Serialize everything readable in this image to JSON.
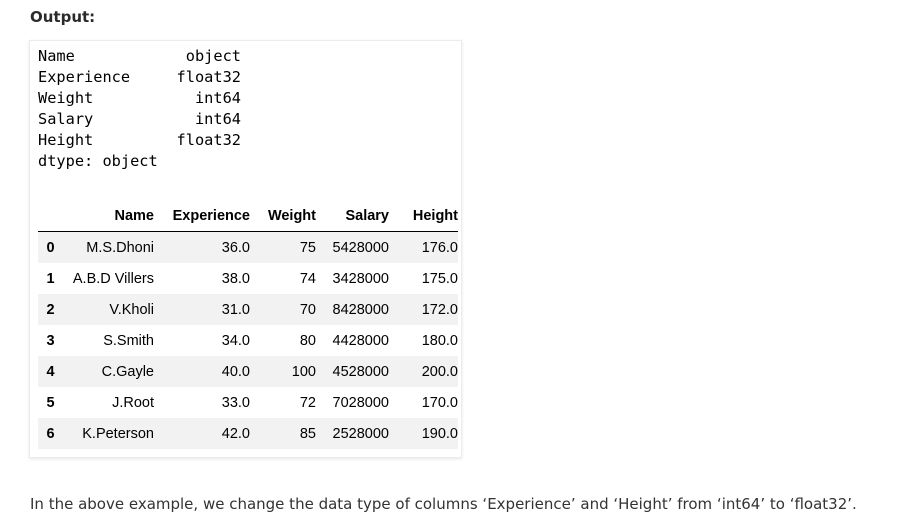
{
  "output_label": "Output:",
  "dtypes": [
    {
      "name": "Name",
      "type": "object"
    },
    {
      "name": "Experience",
      "type": "float32"
    },
    {
      "name": "Weight",
      "type": "int64"
    },
    {
      "name": "Salary",
      "type": "int64"
    },
    {
      "name": "Height",
      "type": "float32"
    }
  ],
  "dtype_footer": "dtype: object",
  "table": {
    "columns": [
      "",
      "Name",
      "Experience",
      "Weight",
      "Salary",
      "Height"
    ],
    "rows": [
      [
        "0",
        "M.S.Dhoni",
        "36.0",
        "75",
        "5428000",
        "176.0"
      ],
      [
        "1",
        "A.B.D Villers",
        "38.0",
        "74",
        "3428000",
        "175.0"
      ],
      [
        "2",
        "V.Kholi",
        "31.0",
        "70",
        "8428000",
        "172.0"
      ],
      [
        "3",
        "S.Smith",
        "34.0",
        "80",
        "4428000",
        "180.0"
      ],
      [
        "4",
        "C.Gayle",
        "40.0",
        "100",
        "4528000",
        "200.0"
      ],
      [
        "5",
        "J.Root",
        "33.0",
        "72",
        "7028000",
        "170.0"
      ],
      [
        "6",
        "K.Peterson",
        "42.0",
        "85",
        "2528000",
        "190.0"
      ]
    ]
  },
  "caption": "In the above example, we change the data type of columns ‘Experience’ and ‘Height’  from ‘int64’ to ‘float32’."
}
